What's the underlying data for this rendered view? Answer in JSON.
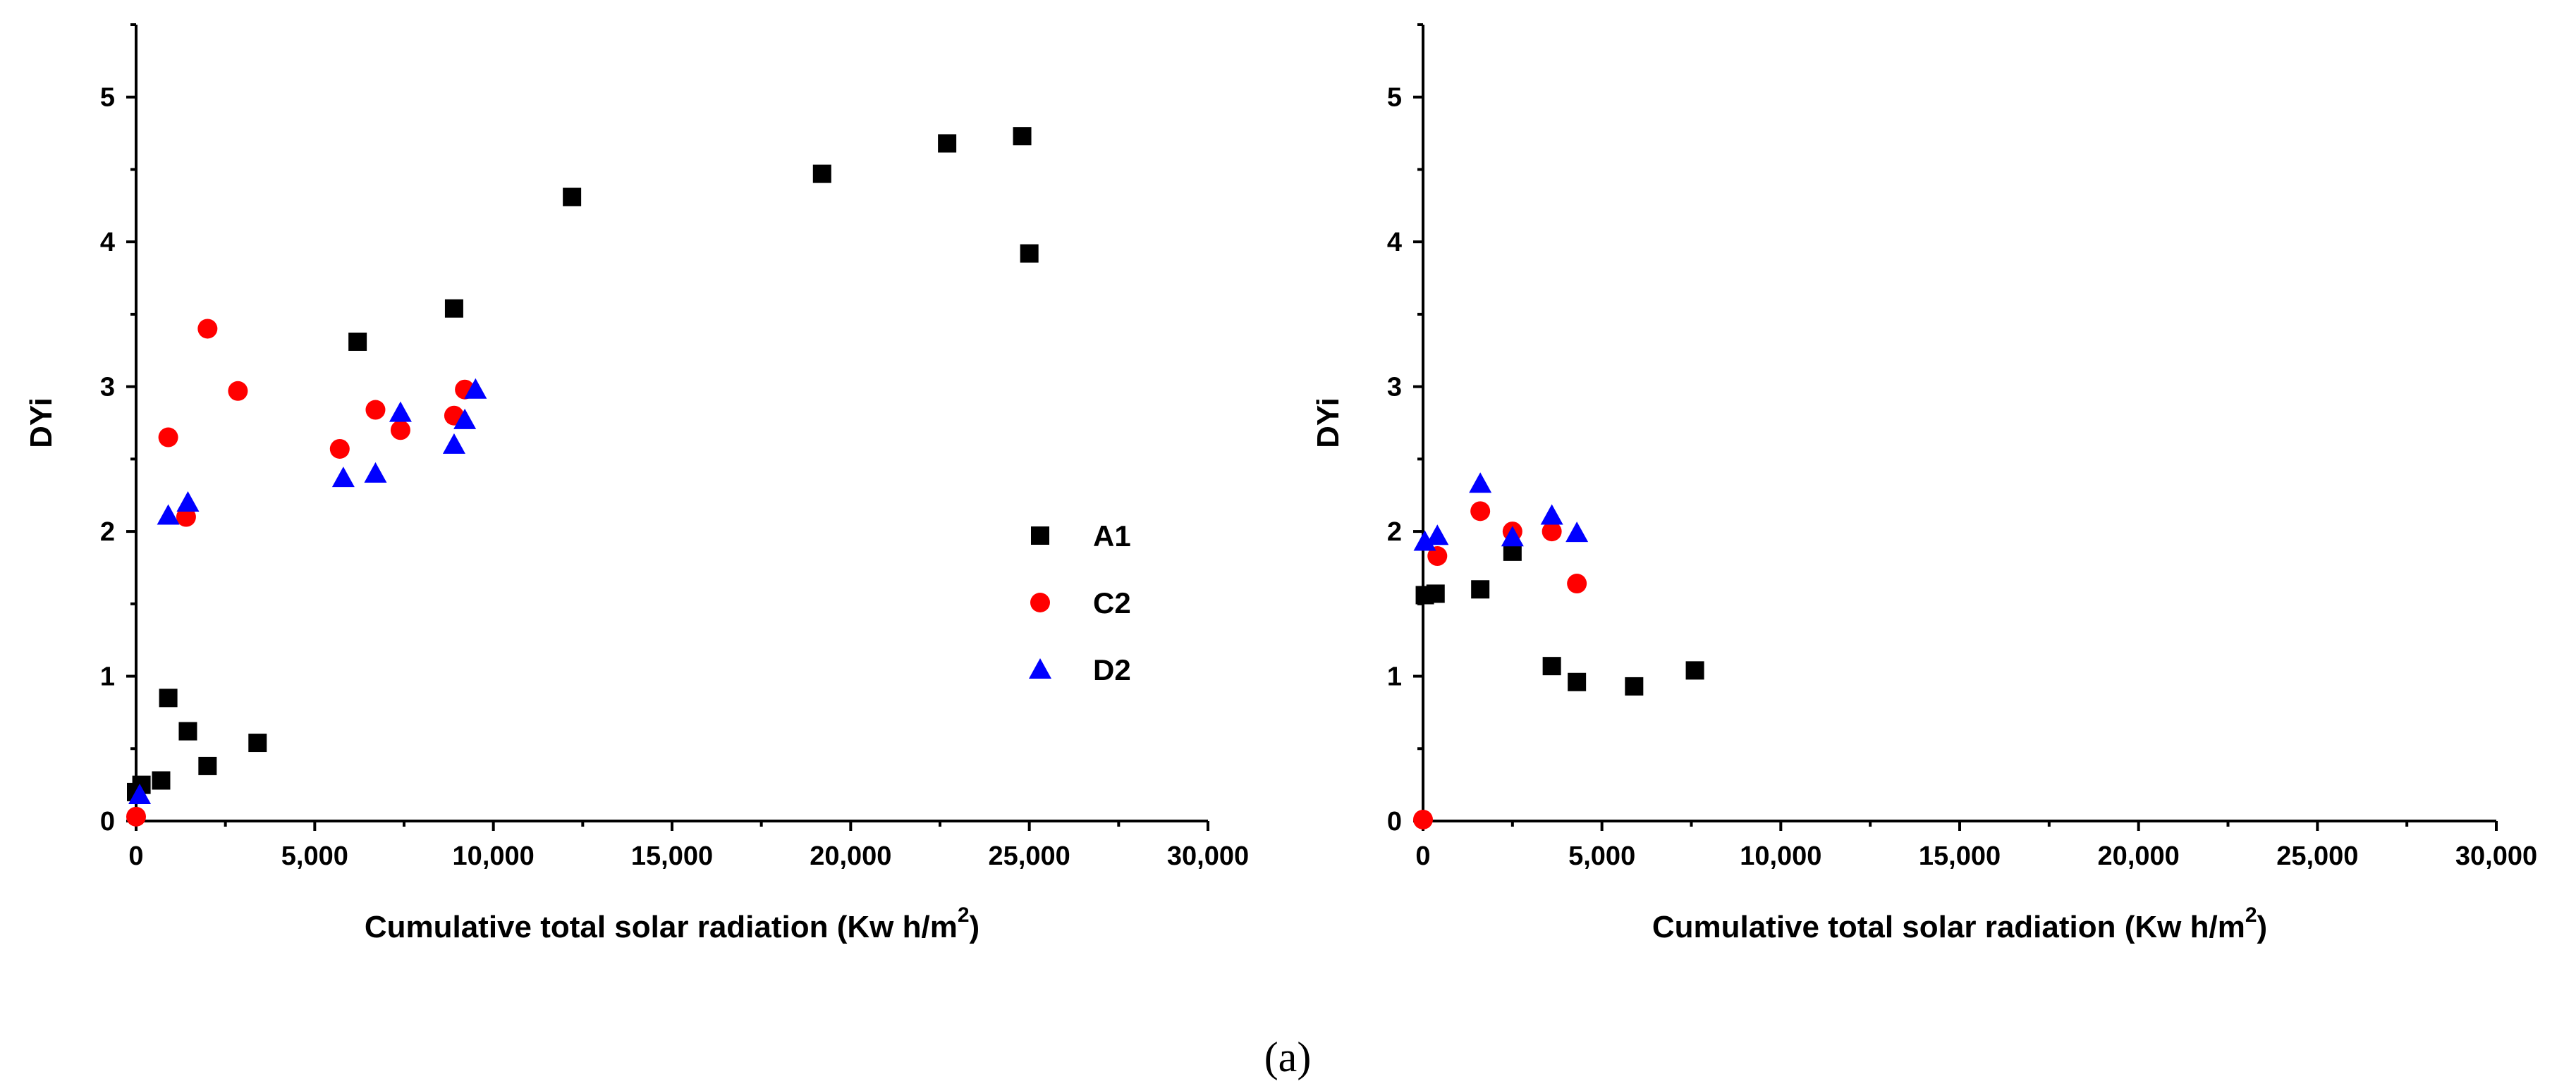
{
  "caption": "(a)",
  "colors": {
    "A1": "#000000",
    "C2": "#ff0000",
    "D2": "#0000ff"
  },
  "chart_data": [
    {
      "type": "scatter",
      "title": "",
      "xlabel": "Cumulative total solar radiation (Kw h/m",
      "xlabel_sup": "2",
      "xlabel_close": ")",
      "ylabel": "DYi",
      "xlim": [
        0,
        30000
      ],
      "ylim": [
        0,
        5.5
      ],
      "xticks": [
        0,
        5000,
        10000,
        15000,
        20000,
        25000,
        30000
      ],
      "xtick_labels": [
        "0",
        "5,000",
        "10,000",
        "15,000",
        "20,000",
        "25,000",
        "30,000"
      ],
      "yticks": [
        0,
        1,
        2,
        3,
        4,
        5
      ],
      "ytick_labels": [
        "0",
        "1",
        "2",
        "3",
        "4",
        "5"
      ],
      "legend": {
        "position": "center-right",
        "entries": [
          "A1",
          "C2",
          "D2"
        ]
      },
      "series": [
        {
          "name": "A1",
          "marker": "square",
          "points": [
            [
              0,
              0.2
            ],
            [
              150,
              0.25
            ],
            [
              700,
              0.28
            ],
            [
              900,
              0.85
            ],
            [
              1450,
              0.62
            ],
            [
              2000,
              0.38
            ],
            [
              3400,
              0.54
            ],
            [
              6200,
              3.31
            ],
            [
              8900,
              3.54
            ],
            [
              12200,
              4.31
            ],
            [
              19200,
              4.47
            ],
            [
              22700,
              4.68
            ],
            [
              24800,
              4.73
            ],
            [
              25000,
              3.92
            ]
          ]
        },
        {
          "name": "C2",
          "marker": "circle",
          "points": [
            [
              0,
              0.03
            ],
            [
              900,
              2.65
            ],
            [
              1400,
              2.1
            ],
            [
              2000,
              3.4
            ],
            [
              2850,
              2.97
            ],
            [
              5700,
              2.57
            ],
            [
              6700,
              2.84
            ],
            [
              7400,
              2.7
            ],
            [
              8900,
              2.8
            ],
            [
              9200,
              2.98
            ]
          ]
        },
        {
          "name": "D2",
          "marker": "triangle",
          "points": [
            [
              100,
              0.18
            ],
            [
              900,
              2.11
            ],
            [
              1450,
              2.2
            ],
            [
              5800,
              2.37
            ],
            [
              6700,
              2.4
            ],
            [
              7400,
              2.82
            ],
            [
              8900,
              2.6
            ],
            [
              9200,
              2.77
            ],
            [
              9500,
              2.98
            ]
          ]
        }
      ]
    },
    {
      "type": "scatter",
      "title": "",
      "xlabel": "Cumulative total solar radiation (Kw h/m",
      "xlabel_sup": "2",
      "xlabel_close": ")",
      "ylabel": "DYi",
      "xlim": [
        0,
        30000
      ],
      "ylim": [
        0,
        5.5
      ],
      "xticks": [
        0,
        5000,
        10000,
        15000,
        20000,
        25000,
        30000
      ],
      "xtick_labels": [
        "0",
        "5,000",
        "10,000",
        "15,000",
        "20,000",
        "25,000",
        "30,000"
      ],
      "yticks": [
        0,
        1,
        2,
        3,
        4,
        5
      ],
      "ytick_labels": [
        "0",
        "1",
        "2",
        "3",
        "4",
        "5"
      ],
      "series": [
        {
          "name": "A1",
          "marker": "square",
          "points": [
            [
              50,
              1.56
            ],
            [
              350,
              1.57
            ],
            [
              1600,
              1.6
            ],
            [
              2500,
              1.86
            ],
            [
              3600,
              1.07
            ],
            [
              4300,
              0.96
            ],
            [
              5900,
              0.93
            ],
            [
              7600,
              1.04
            ]
          ]
        },
        {
          "name": "C2",
          "marker": "circle",
          "points": [
            [
              0,
              0.01
            ],
            [
              400,
              1.83
            ],
            [
              1600,
              2.14
            ],
            [
              2500,
              2.0
            ],
            [
              3600,
              2.0
            ],
            [
              4300,
              1.64
            ]
          ]
        },
        {
          "name": "D2",
          "marker": "triangle",
          "points": [
            [
              50,
              1.93
            ],
            [
              400,
              1.97
            ],
            [
              1600,
              2.33
            ],
            [
              2500,
              1.96
            ],
            [
              3600,
              2.11
            ],
            [
              4300,
              1.99
            ]
          ]
        }
      ]
    }
  ]
}
